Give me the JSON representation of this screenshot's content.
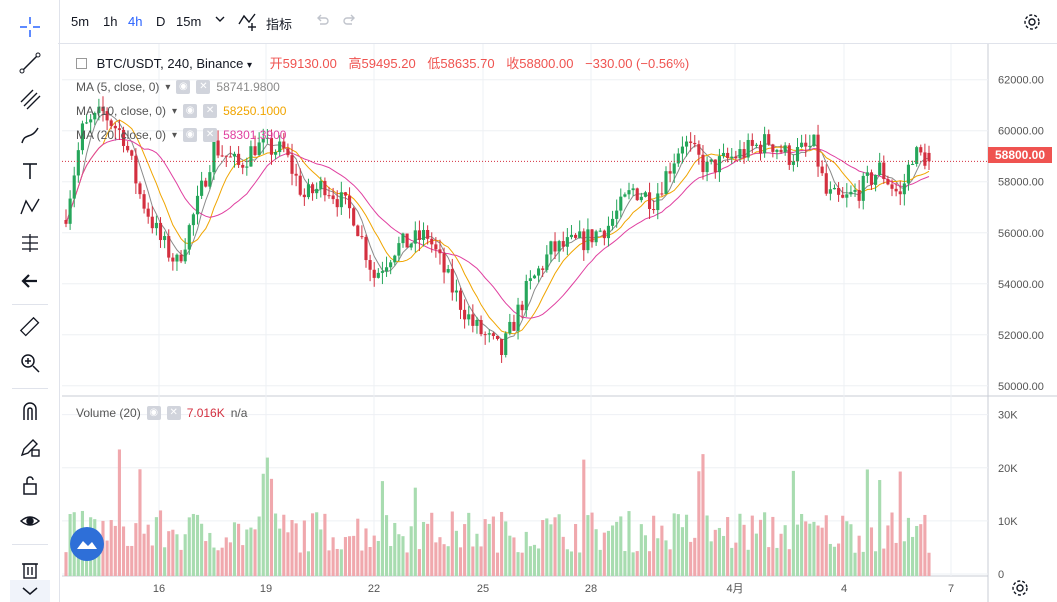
{
  "toolbar": {
    "timeframes": [
      "5m",
      "1h",
      "4h",
      "D",
      "15m"
    ],
    "active_timeframe": "4h",
    "indicators_label": "指标"
  },
  "legend": {
    "symbol": "BTC/USDT, 240, Binance",
    "open_label": "开",
    "open": "59130.00",
    "high_label": "高",
    "high": "59495.20",
    "low_label": "低",
    "low": "58635.70",
    "close_label": "收",
    "close": "58800.00",
    "change": "−330.00 (−0.56%)"
  },
  "indicators": [
    {
      "name": "MA (5, close, 0)",
      "value": "58741.9800",
      "color": "#8a8a8a"
    },
    {
      "name": "MA (10, close, 0)",
      "value": "58250.1000",
      "color": "#f0a500"
    },
    {
      "name": "MA (20, close, 0)",
      "value": "58301.3900",
      "color": "#e040a0"
    }
  ],
  "volume_legend": {
    "name": "Volume (20)",
    "value": "7.016K",
    "ma": "n/a"
  },
  "last_price_tag": "58800.00",
  "colors": {
    "up": "#26a65b",
    "down": "#d32f3f",
    "vol_up": "#a8dcb0",
    "vol_down": "#f0a8ad",
    "grid": "#eef0f4"
  },
  "chart_data": {
    "type": "candlestick",
    "price_axis": {
      "ticks": [
        50000,
        52000,
        54000,
        56000,
        58000,
        60000,
        62000
      ],
      "labels": [
        "50000.00",
        "52000.00",
        "54000.00",
        "56000.00",
        "58000.00",
        "60000.00",
        "62000.00"
      ],
      "range": [
        49600,
        63400
      ]
    },
    "volume_axis": {
      "ticks": [
        0,
        10000,
        20000,
        30000
      ],
      "labels": [
        "0",
        "10K",
        "20K",
        "30K"
      ],
      "range": [
        0,
        32000
      ]
    },
    "x_labels": [
      "16",
      "19",
      "22",
      "25",
      "28",
      "4月",
      "4",
      "7"
    ],
    "last_price": 58800
  }
}
